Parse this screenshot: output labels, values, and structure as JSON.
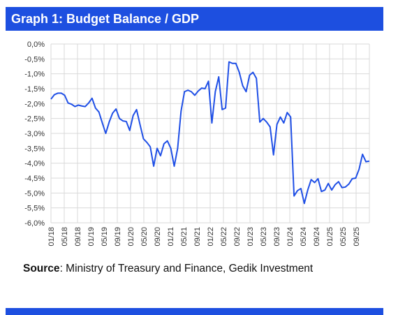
{
  "title": "Graph 1: Budget Balance / GDP",
  "source": {
    "label": "Source",
    "text": ": Ministry of Treasury and Finance, Gedik Investment"
  },
  "colors": {
    "accent": "#1d4fe0",
    "line": "#1f4fe6",
    "grid": "#d9d9d9"
  },
  "chart_data": {
    "type": "line",
    "ylim": [
      -6.0,
      0.0
    ],
    "y_ticks": [
      0.0,
      -0.5,
      -1.0,
      -1.5,
      -2.0,
      -2.5,
      -3.0,
      -3.5,
      -4.0,
      -4.5,
      -5.0,
      -5.5,
      -6.0
    ],
    "y_tick_labels": [
      "0,0%",
      "-0,5%",
      "-1,0%",
      "-1,5%",
      "-2,0%",
      "-2,5%",
      "-3,0%",
      "-3,5%",
      "-4,0%",
      "-4,5%",
      "-5,0%",
      "-5,5%",
      "-6,0%"
    ],
    "x_tick_labels": [
      "01/18",
      "05/18",
      "09/18",
      "01/19",
      "05/19",
      "09/19",
      "01/20",
      "05/20",
      "09/20",
      "01/21",
      "05/21",
      "09/21",
      "01/22",
      "05/22",
      "09/22",
      "01/23",
      "05/23",
      "09/23",
      "01/24",
      "05/24",
      "09/24",
      "01/25",
      "05/25",
      "09/25"
    ],
    "grid": true,
    "series": [
      {
        "values": [
          -1.85,
          -1.7,
          -1.65,
          -1.65,
          -1.72,
          -1.98,
          -2.02,
          -2.1,
          -2.05,
          -2.08,
          -2.1,
          -1.98,
          -1.82,
          -2.15,
          -2.28,
          -2.65,
          -3.0,
          -2.62,
          -2.32,
          -2.18,
          -2.5,
          -2.58,
          -2.6,
          -2.9,
          -2.4,
          -2.2,
          -2.7,
          -3.18,
          -3.3,
          -3.45,
          -4.1,
          -3.5,
          -3.75,
          -3.35,
          -3.25,
          -3.5,
          -4.1,
          -3.5,
          -2.25,
          -1.6,
          -1.55,
          -1.6,
          -1.72,
          -1.58,
          -1.48,
          -1.5,
          -1.25,
          -2.65,
          -1.6,
          -1.1,
          -2.2,
          -2.15,
          -0.6,
          -0.65,
          -0.65,
          -0.95,
          -1.4,
          -1.6,
          -1.05,
          -0.95,
          -1.15,
          -2.62,
          -2.5,
          -2.62,
          -2.78,
          -3.72,
          -2.7,
          -2.45,
          -2.65,
          -2.3,
          -2.45,
          -5.1,
          -4.92,
          -4.85,
          -5.35,
          -4.9,
          -4.55,
          -4.65,
          -4.52,
          -4.95,
          -4.9,
          -4.68,
          -4.9,
          -4.72,
          -4.62,
          -4.82,
          -4.8,
          -4.7,
          -4.52,
          -4.5,
          -4.2,
          -3.7,
          -3.95,
          -3.93
        ]
      }
    ]
  }
}
